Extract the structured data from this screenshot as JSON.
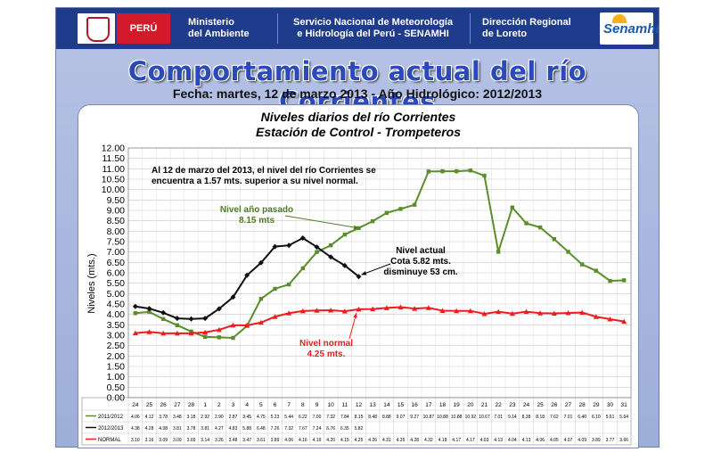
{
  "header": {
    "country": "PERÚ",
    "ministry": [
      "Ministerio",
      "del Ambiente"
    ],
    "service": [
      "Servicio Nacional de Meteorología",
      "e Hidrología del Perú - SENAMHI"
    ],
    "regional": [
      "Dirección Regional",
      "de Loreto"
    ],
    "logo_text": "Senamhi"
  },
  "page_title": "Comportamiento  actual del río Corrientes",
  "page_subtitle": "Fecha: martes, 12 de marzo  2013   -   Año Hidrológico: 2012/2013",
  "colors": {
    "green": "#5a8e2a",
    "black": "#111111",
    "red": "#ee1c1c",
    "brand": "#1f3b8c"
  },
  "chart_data": {
    "type": "line",
    "title": "Niveles diarios del río Corrientes",
    "subtitle": "Estación  de Control -  Trompeteros",
    "ylabel": "Niveles (mts.)",
    "ylim": [
      0,
      12
    ],
    "ytick_step": 0.5,
    "grid": true,
    "categories": [
      "24",
      "25",
      "26",
      "27",
      "28",
      "1",
      "2",
      "3",
      "4",
      "5",
      "6",
      "7",
      "8",
      "9",
      "10",
      "11",
      "12",
      "13",
      "14",
      "15",
      "16",
      "17",
      "18",
      "19",
      "20",
      "21",
      "22",
      "23",
      "24",
      "25",
      "26",
      "27",
      "28",
      "29",
      "30",
      "31"
    ],
    "series": [
      {
        "name": "2011/2012",
        "color": "#5a8e2a",
        "values": [
          4.06,
          4.12,
          3.78,
          3.48,
          3.18,
          2.92,
          2.9,
          2.87,
          3.45,
          4.75,
          5.23,
          5.44,
          6.22,
          7.0,
          7.32,
          7.84,
          8.15,
          8.48,
          8.88,
          9.07,
          9.27,
          10.87,
          10.88,
          10.88,
          10.92,
          10.67,
          7.01,
          9.14,
          8.38,
          8.18,
          7.62,
          7.01,
          6.4,
          6.1,
          5.61,
          5.64
        ]
      },
      {
        "name": "2012/2013",
        "color": "#111111",
        "values": [
          4.38,
          4.28,
          4.08,
          3.81,
          3.78,
          3.81,
          4.27,
          4.83,
          5.88,
          6.48,
          7.26,
          7.32,
          7.67,
          7.24,
          6.76,
          6.35,
          5.82,
          null,
          null,
          null,
          null,
          null,
          null,
          null,
          null,
          null,
          null,
          null,
          null,
          null,
          null,
          null,
          null,
          null,
          null,
          null
        ]
      },
      {
        "name": "NORMAL",
        "color": "#ee1c1c",
        "values": [
          3.1,
          3.16,
          3.09,
          3.09,
          3.09,
          3.14,
          3.26,
          3.48,
          3.47,
          3.61,
          3.89,
          4.06,
          4.16,
          4.19,
          4.2,
          4.15,
          4.25,
          4.26,
          4.31,
          4.35,
          4.28,
          4.32,
          4.18,
          4.17,
          4.17,
          4.03,
          4.13,
          4.04,
          4.13,
          4.06,
          4.05,
          4.07,
          4.09,
          3.89,
          3.77,
          3.66
        ]
      }
    ],
    "annotations": [
      {
        "id": "main",
        "lines": [
          "Al 12 de marzo del 2013, el nivel del río Corrientes se",
          "encuentra a 1.57  mts. superior a su nivel normal."
        ]
      },
      {
        "id": "pasado",
        "lines": [
          "Nivel año pasado",
          "8.15 mts"
        ],
        "series": 0,
        "index": 16
      },
      {
        "id": "actual",
        "lines": [
          "Nivel actual",
          "Cota 5.82 mts.",
          "disminuye 53  cm."
        ],
        "series": 1,
        "index": 16
      },
      {
        "id": "normal",
        "lines": [
          "Nivel normal",
          "4.25 mts."
        ],
        "series": 2,
        "index": 16
      }
    ]
  }
}
